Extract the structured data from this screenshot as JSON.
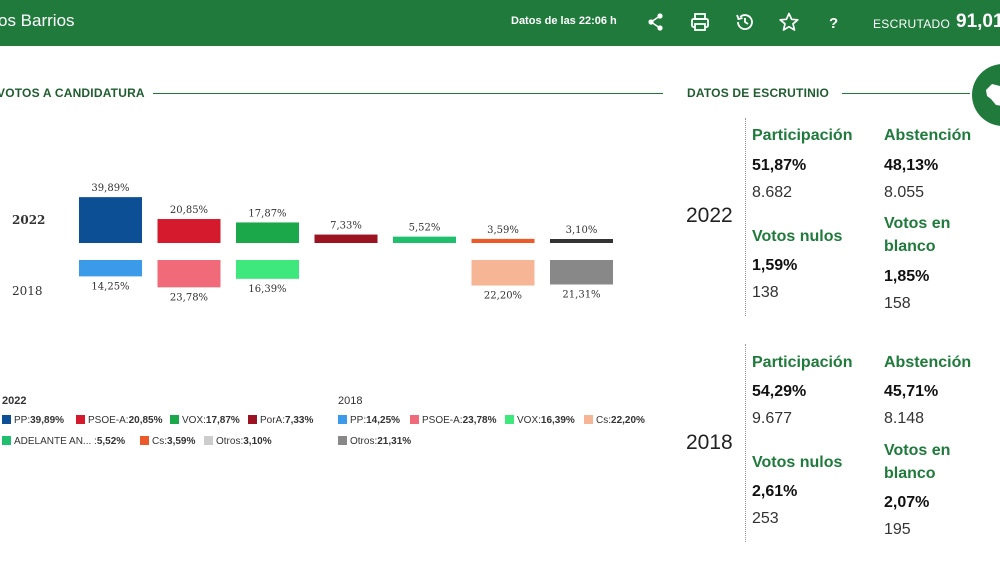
{
  "header": {
    "title": "os Barrios",
    "updated": "Datos de las 22:06 h",
    "escrutado_label": "ESCRUTADO",
    "escrutado_value": "91,01"
  },
  "icons": [
    "share-icon",
    "print-icon",
    "history-icon",
    "star-icon",
    "help-icon",
    "map-icon"
  ],
  "colors": {
    "brand": "#1f7a3c"
  },
  "sections": {
    "votes": "VOTOS A CANDIDATURA",
    "scrutiny": "DATOS DE ESCRUTINIO"
  },
  "chart_data": {
    "type": "bar",
    "rows": [
      "2022",
      "2018"
    ],
    "series": [
      {
        "name": "2022",
        "values": [
          39.89,
          20.85,
          17.87,
          7.33,
          5.52,
          3.59,
          3.1
        ],
        "labels": [
          "39,89%",
          "20,85%",
          "17,87%",
          "7,33%",
          "5,52%",
          "3,59%",
          "3,10%"
        ],
        "colors": [
          "#0d4f95",
          "#d51a2d",
          "#1aa84a",
          "#9b1221",
          "#1fbf6e",
          "#ec5a2a",
          "#333333"
        ]
      },
      {
        "name": "2018",
        "values": [
          14.25,
          23.78,
          16.39,
          0,
          0,
          22.2,
          21.31
        ],
        "labels": [
          "14,25%",
          "23,78%",
          "16,39%",
          "",
          "",
          "22,20%",
          "21,31%"
        ],
        "colors": [
          "#3b9be8",
          "#f06a7a",
          "#3ee87d",
          "#ffffff",
          "#ffffff",
          "#f6b595",
          "#888888"
        ]
      }
    ],
    "legend": {
      "2022": [
        {
          "name": "PP",
          "value": "39,89%",
          "color": "#0d4f95"
        },
        {
          "name": "PSOE-A",
          "value": "20,85%",
          "color": "#d51a2d"
        },
        {
          "name": "VOX",
          "value": "17,87%",
          "color": "#1aa84a"
        },
        {
          "name": "PorA",
          "value": "7,33%",
          "color": "#9b1221"
        },
        {
          "name": "ADELANTE AN...",
          "value": "5,52%",
          "color": "#1fbf6e"
        },
        {
          "name": "Cs",
          "value": "3,59%",
          "color": "#ec5a2a"
        },
        {
          "name": "Otros",
          "value": "3,10%",
          "color": "#cccccc"
        }
      ],
      "2018": [
        {
          "name": "PP",
          "value": "14,25%",
          "color": "#3b9be8"
        },
        {
          "name": "PSOE-A",
          "value": "23,78%",
          "color": "#f06a7a"
        },
        {
          "name": "VOX",
          "value": "16,39%",
          "color": "#3ee87d"
        },
        {
          "name": "Cs",
          "value": "22,20%",
          "color": "#f6b595"
        },
        {
          "name": "Otros",
          "value": "21,31%",
          "color": "#888888"
        }
      ]
    }
  },
  "scrutiny": {
    "y2022": {
      "year": "2022",
      "participacion": {
        "label": "Participación",
        "pct": "51,87%",
        "num": "8.682"
      },
      "abstencion": {
        "label": "Abstención",
        "pct": "48,13%",
        "num": "8.055"
      },
      "nulos": {
        "label": "Votos nulos",
        "pct": "1,59%",
        "num": "138"
      },
      "blanco": {
        "label": "Votos en blanco",
        "pct": "1,85%",
        "num": "158"
      }
    },
    "y2018": {
      "year": "2018",
      "participacion": {
        "label": "Participación",
        "pct": "54,29%",
        "num": "9.677"
      },
      "abstencion": {
        "label": "Abstención",
        "pct": "45,71%",
        "num": "8.148"
      },
      "nulos": {
        "label": "Votos nulos",
        "pct": "2,61%",
        "num": "253"
      },
      "blanco": {
        "label": "Votos en blanco",
        "pct": "2,07%",
        "num": "195"
      }
    }
  }
}
